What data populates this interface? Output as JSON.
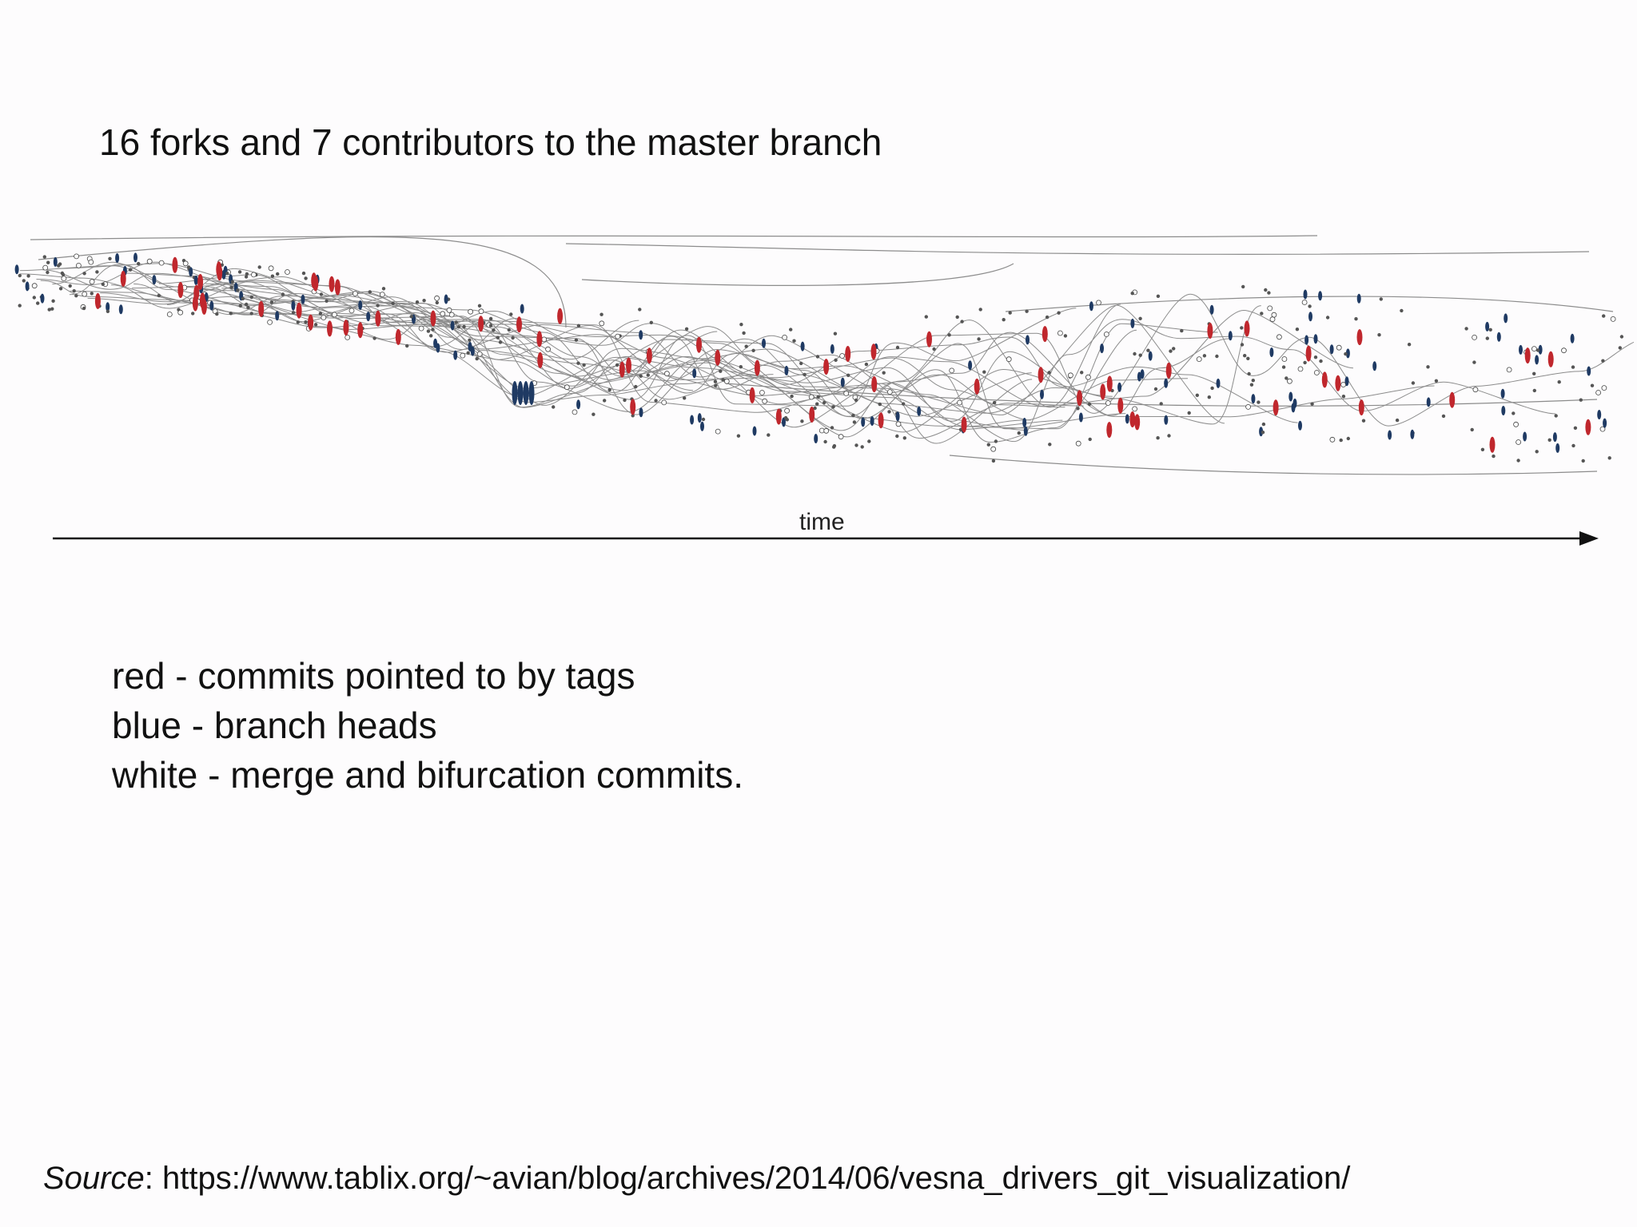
{
  "slide": {
    "title": "16 forks and 7 contributors to the master branch"
  },
  "graph": {
    "axis_label": "time",
    "colors": {
      "tag_commit": "#c0272d",
      "branch_head": "#1f3a63",
      "merge_commit": "#ffffff",
      "edge": "#8c8c8c"
    }
  },
  "legend": {
    "lines": [
      "red - commits pointed to by tags",
      "blue - branch heads",
      "white - merge and bifurcation commits."
    ]
  },
  "source": {
    "label": "Source",
    "separator": ": ",
    "url": "https://www.tablix.org/~avian/blog/archives/2014/06/vesna_drivers_git_visualization/"
  }
}
